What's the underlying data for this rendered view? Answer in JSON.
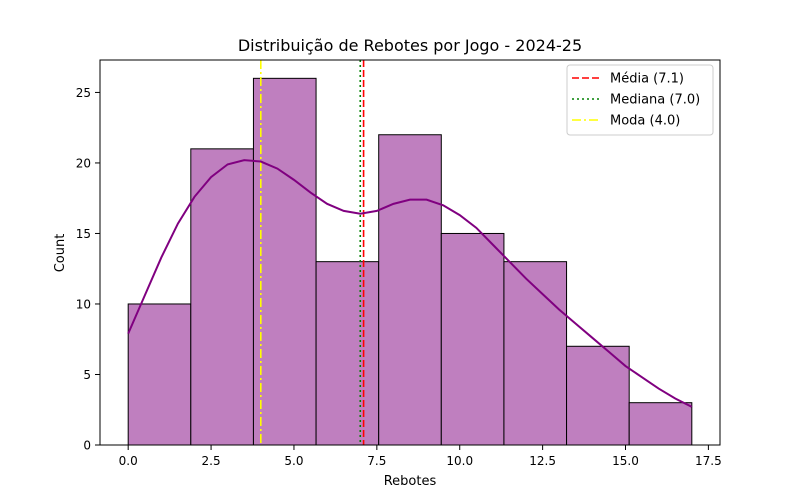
{
  "chart_data": {
    "type": "bar",
    "title": "Distribuição de Rebotes por Jogo - 2024-25",
    "xlabel": "Rebotes",
    "ylabel": "Count",
    "bin_edges": [
      0.0,
      1.889,
      3.778,
      5.667,
      7.556,
      9.444,
      11.333,
      13.222,
      15.111,
      17.0
    ],
    "counts": [
      10,
      21,
      26,
      13,
      22,
      15,
      13,
      7,
      3
    ],
    "xlim": [
      -0.85,
      17.85
    ],
    "ylim": [
      0,
      27.3
    ],
    "xticks": [
      0.0,
      2.5,
      5.0,
      7.5,
      10.0,
      12.5,
      15.0,
      17.5
    ],
    "xtick_labels": [
      "0.0",
      "2.5",
      "5.0",
      "7.5",
      "10.0",
      "12.5",
      "15.0",
      "17.5"
    ],
    "yticks": [
      0,
      5,
      10,
      15,
      20,
      25
    ],
    "ytick_labels": [
      "0",
      "5",
      "10",
      "15",
      "20",
      "25"
    ],
    "kde": {
      "x": [
        0,
        0.5,
        1,
        1.5,
        2,
        2.5,
        3,
        3.5,
        4,
        4.5,
        5,
        5.5,
        6,
        6.5,
        7,
        7.5,
        8,
        8.5,
        9,
        9.5,
        10,
        10.5,
        11,
        11.5,
        12,
        12.5,
        13,
        13.5,
        14,
        14.5,
        15,
        15.5,
        16,
        16.5,
        17
      ],
      "y": [
        7.9,
        10.6,
        13.3,
        15.7,
        17.6,
        19.0,
        19.9,
        20.2,
        20.1,
        19.6,
        18.8,
        17.9,
        17.1,
        16.6,
        16.4,
        16.6,
        17.1,
        17.4,
        17.4,
        17.0,
        16.3,
        15.4,
        14.2,
        13.0,
        11.8,
        10.7,
        9.6,
        8.6,
        7.6,
        6.6,
        5.6,
        4.8,
        4.0,
        3.3,
        2.7
      ]
    },
    "vlines": [
      {
        "label": "Média (7.1)",
        "x": 7.1,
        "color": "#ff0000",
        "style": "dashed"
      },
      {
        "label": "Mediana (7.0)",
        "x": 7.0,
        "color": "#008000",
        "style": "dotted"
      },
      {
        "label": "Moda (4.0)",
        "x": 4.0,
        "color": "#ffff00",
        "style": "dashdot"
      }
    ],
    "bar_color": "#bf7fbf",
    "kde_color": "#800080",
    "legend_position": "top-right",
    "grid": false
  }
}
